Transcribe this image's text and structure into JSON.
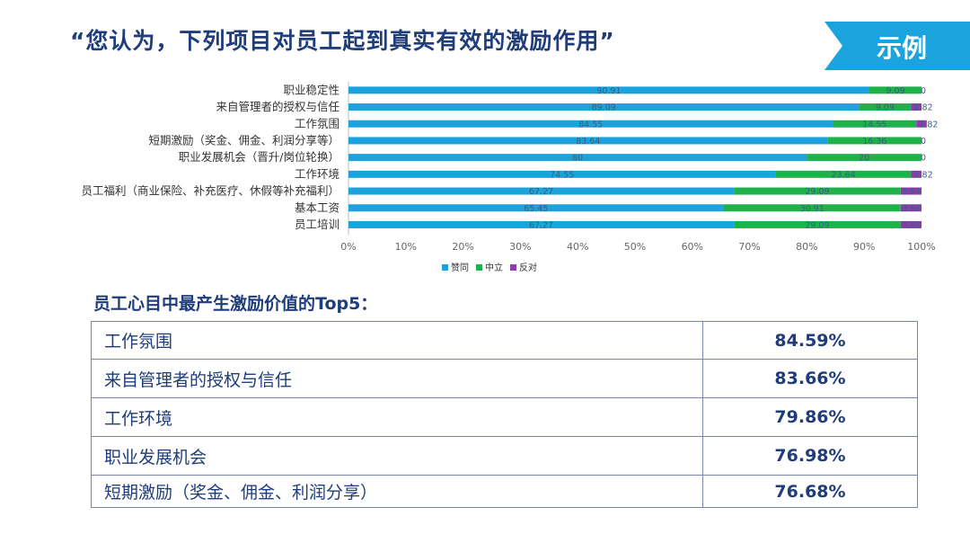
{
  "title": "“您认为，下列项目对员工起到真实有效的激励作用”",
  "tag": "示例",
  "colors": {
    "agree": "#1aa3dc",
    "neutral": "#1db34a",
    "oppose": "#8e3bb0",
    "navy": "#1f3d7a",
    "accent": "#1aa3dc"
  },
  "chart_data": {
    "type": "bar",
    "orientation": "horizontal",
    "stacked": true,
    "categories": [
      "职业稳定性",
      "来自管理者的授权与信任",
      "工作氛围",
      "短期激励（奖金、佣金、利润分享等）",
      "职业发展机会（晋升/岗位轮换）",
      "工作环境",
      "员工福利（商业保险、补充医疗、休假等补充福利）",
      "基本工资",
      "员工培训"
    ],
    "series": [
      {
        "name": "赞同",
        "values": [
          90.91,
          89.09,
          84.55,
          83.64,
          80,
          74.55,
          67.27,
          65.45,
          67.27
        ]
      },
      {
        "name": "中立",
        "values": [
          9.09,
          9.09,
          14.55,
          16.36,
          20,
          23.64,
          29.09,
          30.91,
          29.09
        ]
      },
      {
        "name": "反对",
        "values": [
          0,
          1.82,
          1.82,
          0,
          0,
          1.82,
          3.64,
          3.64,
          3.64
        ]
      }
    ],
    "labels": [
      [
        "90.91",
        "9.09",
        "0"
      ],
      [
        "89.09",
        "9.09",
        "1.82"
      ],
      [
        "84.55",
        "14.55",
        "1.82"
      ],
      [
        "83.64",
        "16.36",
        "0"
      ],
      [
        "80",
        "20",
        "0"
      ],
      [
        "74.55",
        "23.64",
        "1.82"
      ],
      [
        "67.27",
        "29.09",
        "3.64"
      ],
      [
        "65.45",
        "30.91",
        "3.64"
      ],
      [
        "67.27",
        "29.09",
        "3.64"
      ]
    ],
    "xticks": [
      "0%",
      "10%",
      "20%",
      "30%",
      "40%",
      "50%",
      "60%",
      "70%",
      "80%",
      "90%",
      "100%"
    ],
    "xlim": [
      0,
      100
    ],
    "legend_position": "bottom",
    "grid": false
  },
  "top5": {
    "title": "员工心目中最产生激励价值的Top5：",
    "rows": [
      {
        "name": "工作氛围",
        "value": "84.59%"
      },
      {
        "name": "来自管理者的授权与信任",
        "value": "83.66%"
      },
      {
        "name": "工作环境",
        "value": "79.86%"
      },
      {
        "name": "职业发展机会",
        "value": "76.98%"
      },
      {
        "name": "短期激励（奖金、佣金、利润分享）",
        "value": "76.68%"
      }
    ]
  }
}
